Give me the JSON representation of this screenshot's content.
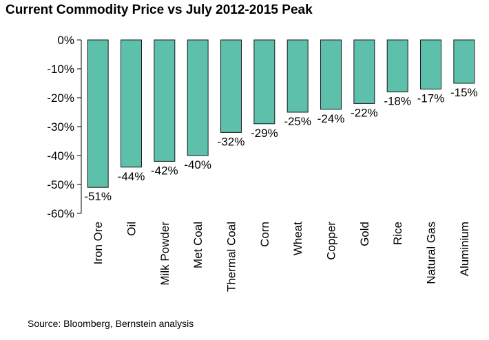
{
  "chart_data": {
    "type": "bar",
    "title": "Current Commodity Price vs July 2012-2015 Peak",
    "source": "Source: Bloomberg, Bernstein analysis",
    "categories": [
      "Iron Ore",
      "Oil",
      "Milk Powder",
      "Met Coal",
      "Thermal Coal",
      "Corn",
      "Wheat",
      "Copper",
      "Gold",
      "Rice",
      "Natural Gas",
      "Aluminium"
    ],
    "values": [
      -51,
      -44,
      -42,
      -40,
      -32,
      -29,
      -25,
      -24,
      -22,
      -18,
      -17,
      -15
    ],
    "data_labels": [
      "-51%",
      "-44%",
      "-42%",
      "-40%",
      "-32%",
      "-29%",
      "-25%",
      "-24%",
      "-22%",
      "-18%",
      "-17%",
      "-15%"
    ],
    "yticks": [
      0,
      -10,
      -20,
      -30,
      -40,
      -50,
      -60
    ],
    "ytick_labels": [
      "0%",
      "-10%",
      "-20%",
      "-30%",
      "-40%",
      "-50%",
      "-60%"
    ],
    "ylim": [
      -60,
      0
    ],
    "xlabel": "",
    "ylabel": "",
    "grid": false,
    "bar_color": "#5cc0ab",
    "bar_edge_color": "#1a1a1a"
  }
}
